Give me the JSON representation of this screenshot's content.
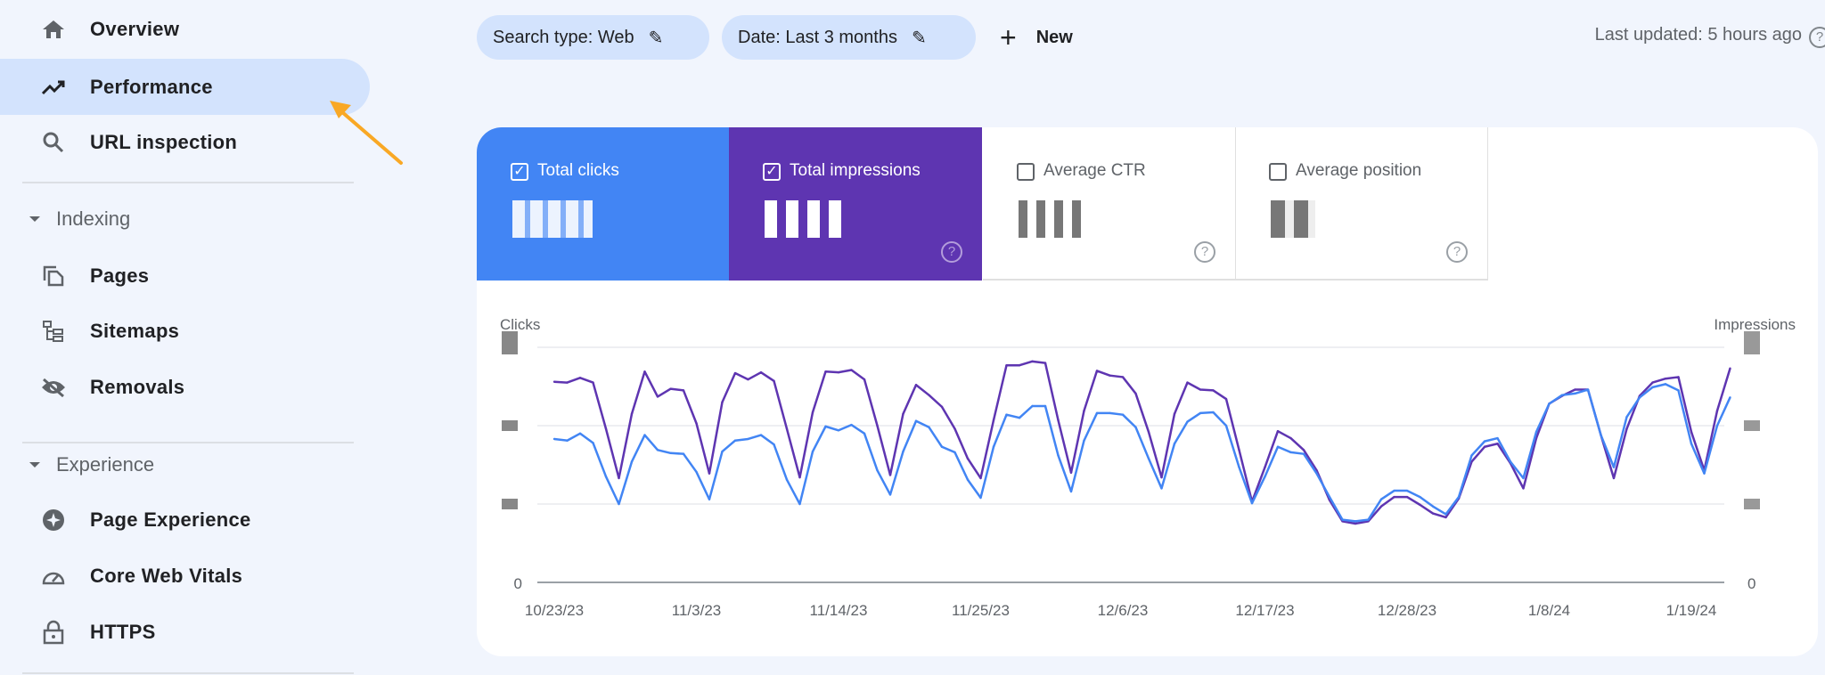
{
  "sidebar": {
    "items": [
      {
        "label": "Overview",
        "icon": "home-icon"
      },
      {
        "label": "Performance",
        "icon": "trending-up-icon",
        "active": true
      },
      {
        "label": "URL inspection",
        "icon": "search-icon"
      }
    ],
    "sections": [
      {
        "label": "Indexing",
        "items": [
          {
            "label": "Pages",
            "icon": "pages-icon"
          },
          {
            "label": "Sitemaps",
            "icon": "sitemap-icon"
          },
          {
            "label": "Removals",
            "icon": "eye-off-icon"
          }
        ]
      },
      {
        "label": "Experience",
        "items": [
          {
            "label": "Page Experience",
            "icon": "page-experience-icon"
          },
          {
            "label": "Core Web Vitals",
            "icon": "gauge-icon"
          },
          {
            "label": "HTTPS",
            "icon": "lock-icon"
          }
        ]
      }
    ]
  },
  "filters": {
    "search_type": "Search type: Web",
    "date": "Date: Last 3 months",
    "new_label": "New",
    "last_updated": "Last updated: 5 hours ago"
  },
  "metrics": [
    {
      "label": "Total clicks",
      "checked": true,
      "color": "#4285f4"
    },
    {
      "label": "Total impressions",
      "checked": true,
      "color": "#5e35b1"
    },
    {
      "label": "Average CTR",
      "checked": false
    },
    {
      "label": "Average position",
      "checked": false
    }
  ],
  "colors": {
    "clicks": "#4285f4",
    "impressions": "#5e35b1",
    "active_nav": "#d3e3fd",
    "annotation_arrow": "#f9a825"
  },
  "chart_data": {
    "type": "line",
    "left_axis_label": "Clicks",
    "right_axis_label": "Impressions",
    "left_ticks": [
      "0"
    ],
    "right_ticks": [
      "0"
    ],
    "note_values": "axis values are redacted in the original; y values are relative to the unlabeled gridlines (0-3)",
    "x_tick_labels": [
      "10/23/23",
      "11/3/23",
      "11/14/23",
      "11/25/23",
      "12/6/23",
      "12/17/23",
      "12/28/23",
      "1/8/24",
      "1/19/24"
    ],
    "x_start": "10/23/23",
    "ylim": [
      0,
      3
    ],
    "grid": true,
    "series": [
      {
        "key": "impressions",
        "color": "#5e35b1",
        "values": [
          2.56,
          2.55,
          2.61,
          2.55,
          1.96,
          1.33,
          2.15,
          2.69,
          2.37,
          2.47,
          2.45,
          2.03,
          1.39,
          2.3,
          2.67,
          2.59,
          2.68,
          2.57,
          1.96,
          1.34,
          2.17,
          2.69,
          2.68,
          2.71,
          2.59,
          2.0,
          1.37,
          2.15,
          2.52,
          2.39,
          2.24,
          1.96,
          1.58,
          1.33,
          2.07,
          2.77,
          2.77,
          2.82,
          2.8,
          2.07,
          1.4,
          2.19,
          2.7,
          2.64,
          2.62,
          2.41,
          1.92,
          1.34,
          2.15,
          2.55,
          2.46,
          2.45,
          2.34,
          1.69,
          1.03,
          1.47,
          1.93,
          1.84,
          1.69,
          1.43,
          1.05,
          0.78,
          0.75,
          0.78,
          0.97,
          1.09,
          1.09,
          0.99,
          0.88,
          0.83,
          1.07,
          1.54,
          1.73,
          1.77,
          1.52,
          1.2,
          1.84,
          2.28,
          2.38,
          2.46,
          2.46,
          1.88,
          1.33,
          1.96,
          2.38,
          2.55,
          2.6,
          2.62,
          1.92,
          1.43,
          2.19,
          2.73
        ]
      },
      {
        "key": "clicks",
        "color": "#4285f4",
        "values": [
          1.83,
          1.81,
          1.9,
          1.78,
          1.35,
          1.0,
          1.54,
          1.88,
          1.69,
          1.65,
          1.64,
          1.41,
          1.06,
          1.67,
          1.81,
          1.83,
          1.88,
          1.76,
          1.31,
          1.0,
          1.67,
          1.99,
          1.94,
          2.01,
          1.9,
          1.43,
          1.12,
          1.67,
          2.06,
          1.98,
          1.73,
          1.66,
          1.31,
          1.08,
          1.73,
          2.14,
          2.1,
          2.25,
          2.25,
          1.62,
          1.16,
          1.81,
          2.16,
          2.16,
          2.14,
          1.98,
          1.58,
          1.2,
          1.77,
          2.05,
          2.16,
          2.17,
          2.0,
          1.47,
          1.01,
          1.35,
          1.73,
          1.66,
          1.64,
          1.39,
          1.09,
          0.8,
          0.78,
          0.8,
          1.06,
          1.17,
          1.17,
          1.09,
          0.97,
          0.87,
          1.09,
          1.62,
          1.8,
          1.84,
          1.54,
          1.33,
          1.92,
          2.28,
          2.39,
          2.41,
          2.46,
          1.88,
          1.47,
          2.11,
          2.36,
          2.49,
          2.53,
          2.45,
          1.77,
          1.39,
          2.0,
          2.36
        ]
      }
    ]
  }
}
